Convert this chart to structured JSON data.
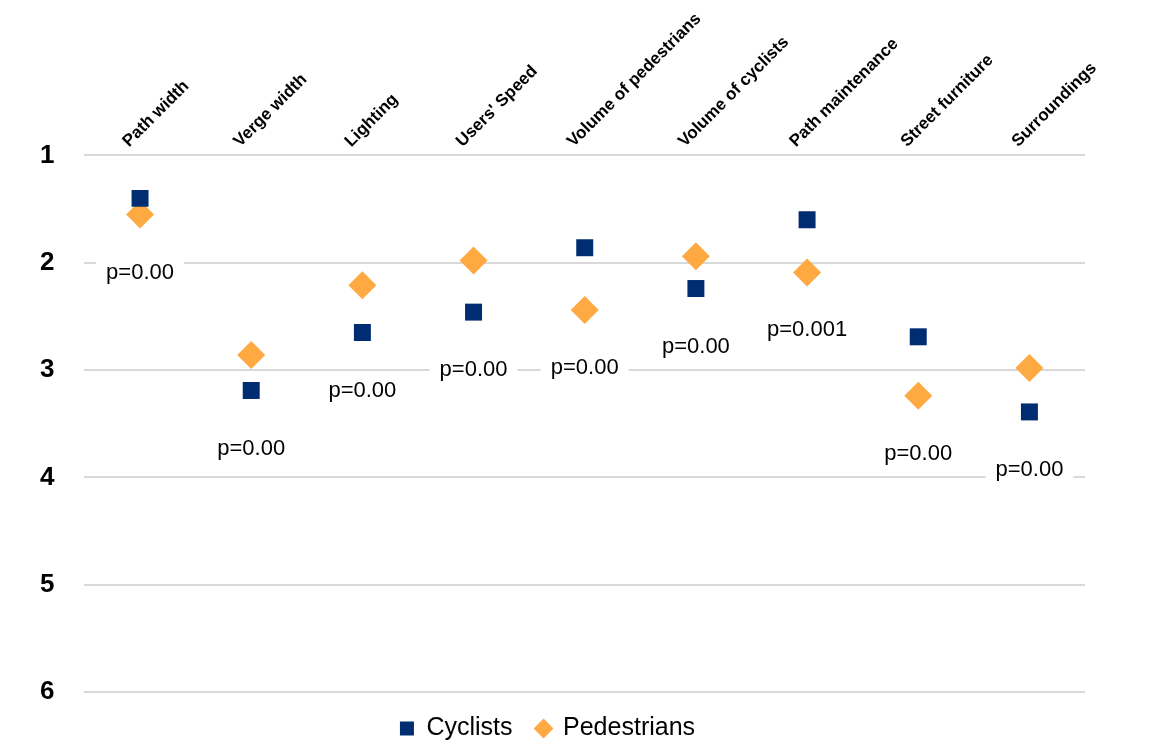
{
  "chart_data": {
    "type": "scatter",
    "categories": [
      "Path width",
      "Verge width",
      "Lighting",
      "Users' Speed",
      "Volume of pedestrians",
      "Volume of cyclists",
      "Path maintenance",
      "Street furniture",
      "Surroundings"
    ],
    "series": [
      {
        "name": "Cyclists",
        "color": "#002d72",
        "marker": "square",
        "values": [
          1.4,
          3.19,
          2.65,
          2.46,
          1.86,
          2.24,
          1.6,
          2.69,
          3.39
        ]
      },
      {
        "name": "Pedestrians",
        "color": "#ffa943",
        "marker": "diamond",
        "values": [
          1.55,
          2.86,
          2.21,
          1.98,
          2.44,
          1.94,
          2.09,
          3.24,
          2.98
        ]
      }
    ],
    "ylim": [
      6,
      1
    ],
    "yticks": [
      1,
      2,
      3,
      4,
      5,
      6
    ],
    "grid": "y",
    "legend": "bottom",
    "annotations": [
      "p=0.00",
      "p=0.00",
      "p=0.00",
      "p=0.00",
      "p=0.00",
      "p=0.00",
      "p=0.001",
      "p=0.00",
      "p=0.00"
    ]
  }
}
